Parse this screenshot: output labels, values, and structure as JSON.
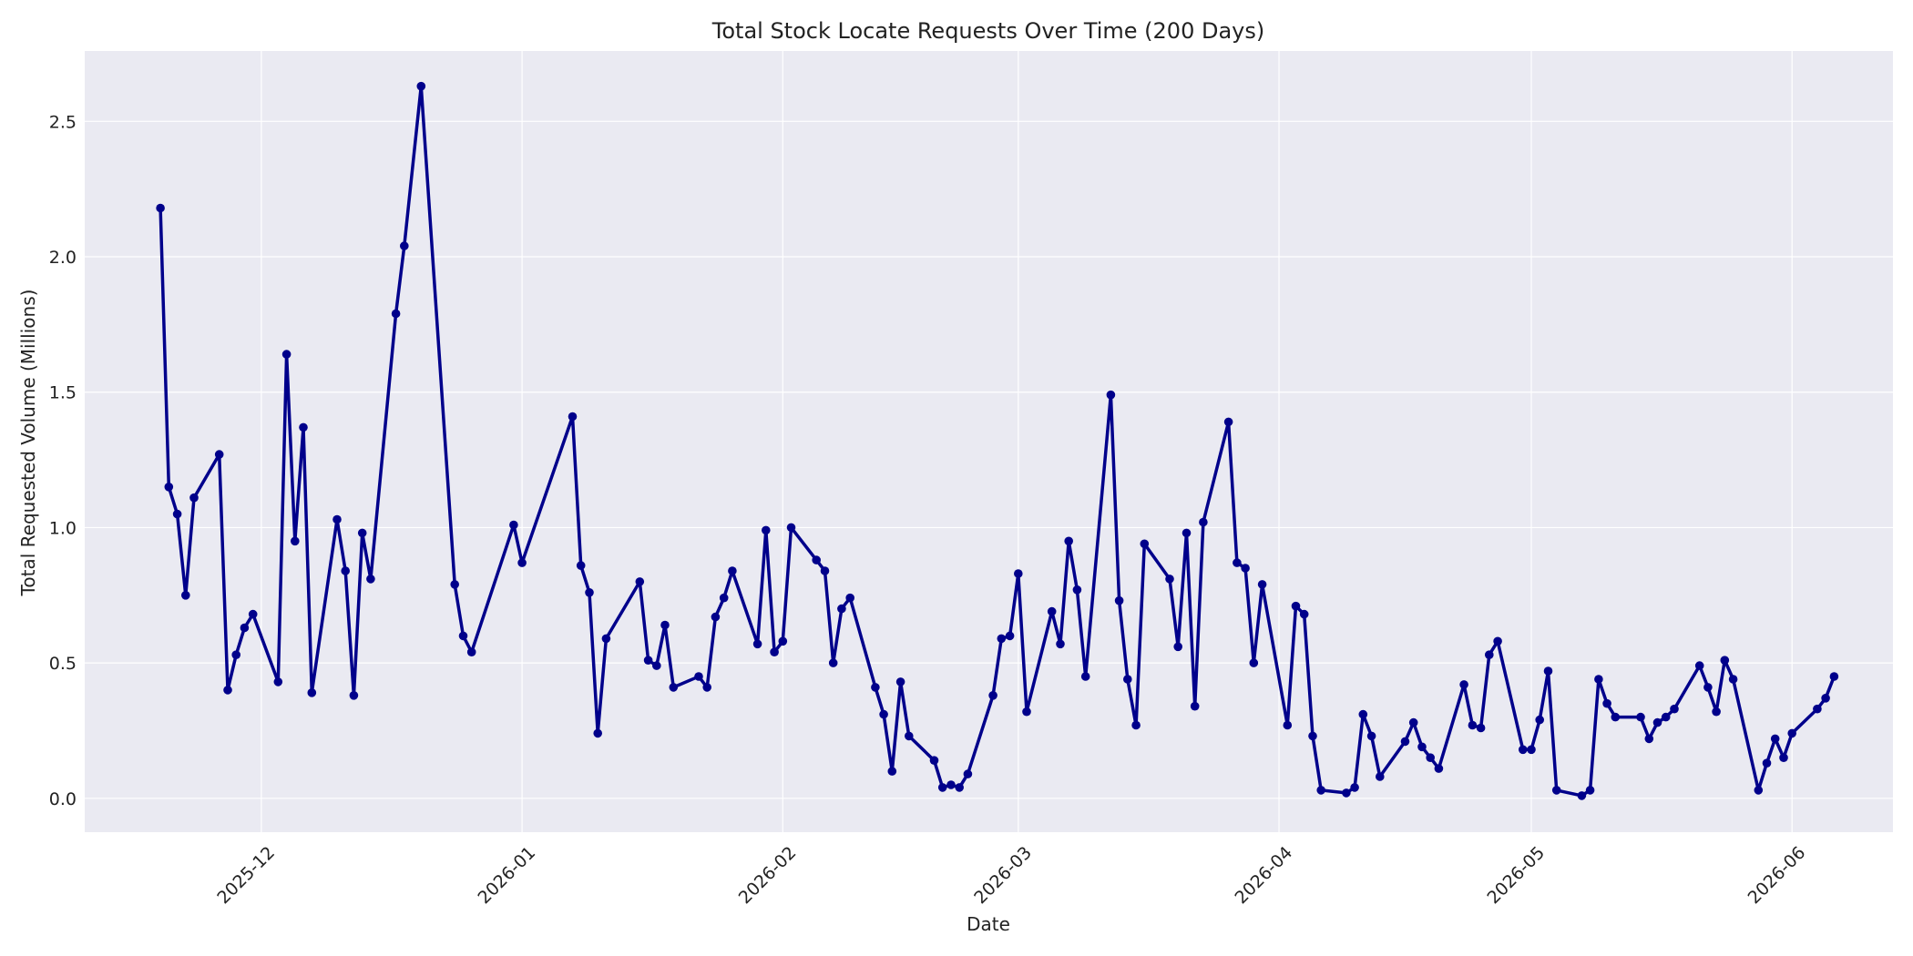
{
  "chart_data": {
    "type": "line",
    "title": "Total Stock Locate Requests Over Time (200 Days)",
    "xlabel": "Date",
    "ylabel": "Total Requested Volume (Millions)",
    "xlim": [
      "2025-11-10",
      "2026-06-13"
    ],
    "ylim": [
      -0.125,
      2.76
    ],
    "x_ticks": [
      "2025-12",
      "2026-01",
      "2026-02",
      "2026-03",
      "2026-04",
      "2026-05",
      "2026-06"
    ],
    "y_ticks": [
      "0.0",
      "0.5",
      "1.0",
      "1.5",
      "2.0",
      "2.5"
    ],
    "grid": true,
    "colors": {
      "line": "#00008b",
      "plot_background": "#eaeaf2",
      "grid": "#ffffff"
    },
    "series": [
      {
        "points": [
          [
            "2025-11-19",
            2.18
          ],
          [
            "2025-11-20",
            1.15
          ],
          [
            "2025-11-21",
            1.05
          ],
          [
            "2025-11-22",
            0.75
          ],
          [
            "2025-11-23",
            1.11
          ],
          [
            "2025-11-26",
            1.27
          ],
          [
            "2025-11-27",
            0.4
          ],
          [
            "2025-11-28",
            0.53
          ],
          [
            "2025-11-29",
            0.63
          ],
          [
            "2025-11-30",
            0.68
          ],
          [
            "2025-12-03",
            0.43
          ],
          [
            "2025-12-04",
            1.64
          ],
          [
            "2025-12-05",
            0.95
          ],
          [
            "2025-12-06",
            1.37
          ],
          [
            "2025-12-07",
            0.39
          ],
          [
            "2025-12-10",
            1.03
          ],
          [
            "2025-12-11",
            0.84
          ],
          [
            "2025-12-12",
            0.38
          ],
          [
            "2025-12-13",
            0.98
          ],
          [
            "2025-12-14",
            0.81
          ],
          [
            "2025-12-17",
            1.79
          ],
          [
            "2025-12-18",
            2.04
          ],
          [
            "2025-12-20",
            2.63
          ],
          [
            "2025-12-24",
            0.79
          ],
          [
            "2025-12-25",
            0.6
          ],
          [
            "2025-12-26",
            0.54
          ],
          [
            "2025-12-31",
            1.01
          ],
          [
            "2026-01-01",
            0.87
          ],
          [
            "2026-01-07",
            1.41
          ],
          [
            "2026-01-08",
            0.86
          ],
          [
            "2026-01-09",
            0.76
          ],
          [
            "2026-01-10",
            0.24
          ],
          [
            "2026-01-11",
            0.59
          ],
          [
            "2026-01-15",
            0.8
          ],
          [
            "2026-01-16",
            0.51
          ],
          [
            "2026-01-17",
            0.49
          ],
          [
            "2026-01-18",
            0.64
          ],
          [
            "2026-01-19",
            0.41
          ],
          [
            "2026-01-22",
            0.45
          ],
          [
            "2026-01-23",
            0.41
          ],
          [
            "2026-01-24",
            0.67
          ],
          [
            "2026-01-25",
            0.74
          ],
          [
            "2026-01-26",
            0.84
          ],
          [
            "2026-01-29",
            0.57
          ],
          [
            "2026-01-30",
            0.99
          ],
          [
            "2026-01-31",
            0.54
          ],
          [
            "2026-02-01",
            0.58
          ],
          [
            "2026-02-02",
            1.0
          ],
          [
            "2026-02-05",
            0.88
          ],
          [
            "2026-02-06",
            0.84
          ],
          [
            "2026-02-07",
            0.5
          ],
          [
            "2026-02-08",
            0.7
          ],
          [
            "2026-02-09",
            0.74
          ],
          [
            "2026-02-12",
            0.41
          ],
          [
            "2026-02-13",
            0.31
          ],
          [
            "2026-02-14",
            0.1
          ],
          [
            "2026-02-15",
            0.43
          ],
          [
            "2026-02-16",
            0.23
          ],
          [
            "2026-02-19",
            0.14
          ],
          [
            "2026-02-20",
            0.04
          ],
          [
            "2026-02-21",
            0.05
          ],
          [
            "2026-02-22",
            0.04
          ],
          [
            "2026-02-23",
            0.09
          ],
          [
            "2026-02-26",
            0.38
          ],
          [
            "2026-02-27",
            0.59
          ],
          [
            "2026-02-28",
            0.6
          ],
          [
            "2026-03-01",
            0.83
          ],
          [
            "2026-03-02",
            0.32
          ],
          [
            "2026-03-05",
            0.69
          ],
          [
            "2026-03-06",
            0.57
          ],
          [
            "2026-03-07",
            0.95
          ],
          [
            "2026-03-08",
            0.77
          ],
          [
            "2026-03-09",
            0.45
          ],
          [
            "2026-03-12",
            1.49
          ],
          [
            "2026-03-13",
            0.73
          ],
          [
            "2026-03-14",
            0.44
          ],
          [
            "2026-03-15",
            0.27
          ],
          [
            "2026-03-16",
            0.94
          ],
          [
            "2026-03-19",
            0.81
          ],
          [
            "2026-03-20",
            0.56
          ],
          [
            "2026-03-21",
            0.98
          ],
          [
            "2026-03-22",
            0.34
          ],
          [
            "2026-03-23",
            1.02
          ],
          [
            "2026-03-26",
            1.39
          ],
          [
            "2026-03-27",
            0.87
          ],
          [
            "2026-03-28",
            0.85
          ],
          [
            "2026-03-29",
            0.5
          ],
          [
            "2026-03-30",
            0.79
          ],
          [
            "2026-04-02",
            0.27
          ],
          [
            "2026-04-03",
            0.71
          ],
          [
            "2026-04-04",
            0.68
          ],
          [
            "2026-04-05",
            0.23
          ],
          [
            "2026-04-06",
            0.03
          ],
          [
            "2026-04-09",
            0.02
          ],
          [
            "2026-04-10",
            0.04
          ],
          [
            "2026-04-11",
            0.31
          ],
          [
            "2026-04-12",
            0.23
          ],
          [
            "2026-04-13",
            0.08
          ],
          [
            "2026-04-16",
            0.21
          ],
          [
            "2026-04-17",
            0.28
          ],
          [
            "2026-04-18",
            0.19
          ],
          [
            "2026-04-19",
            0.15
          ],
          [
            "2026-04-20",
            0.11
          ],
          [
            "2026-04-23",
            0.42
          ],
          [
            "2026-04-24",
            0.27
          ],
          [
            "2026-04-25",
            0.26
          ],
          [
            "2026-04-26",
            0.53
          ],
          [
            "2026-04-27",
            0.58
          ],
          [
            "2026-04-30",
            0.18
          ],
          [
            "2026-05-01",
            0.18
          ],
          [
            "2026-05-02",
            0.29
          ],
          [
            "2026-05-03",
            0.47
          ],
          [
            "2026-05-04",
            0.03
          ],
          [
            "2026-05-07",
            0.01
          ],
          [
            "2026-05-08",
            0.03
          ],
          [
            "2026-05-09",
            0.44
          ],
          [
            "2026-05-10",
            0.35
          ],
          [
            "2026-05-11",
            0.3
          ],
          [
            "2026-05-14",
            0.3
          ],
          [
            "2026-05-15",
            0.22
          ],
          [
            "2026-05-16",
            0.28
          ],
          [
            "2026-05-17",
            0.3
          ],
          [
            "2026-05-18",
            0.33
          ],
          [
            "2026-05-21",
            0.49
          ],
          [
            "2026-05-22",
            0.41
          ],
          [
            "2026-05-23",
            0.32
          ],
          [
            "2026-05-24",
            0.51
          ],
          [
            "2026-05-25",
            0.44
          ],
          [
            "2026-05-28",
            0.03
          ],
          [
            "2026-05-29",
            0.13
          ],
          [
            "2026-05-30",
            0.22
          ],
          [
            "2026-05-31",
            0.15
          ],
          [
            "2026-06-01",
            0.24
          ],
          [
            "2026-06-04",
            0.33
          ],
          [
            "2026-06-05",
            0.37
          ],
          [
            "2026-06-06",
            0.45
          ]
        ]
      }
    ]
  }
}
